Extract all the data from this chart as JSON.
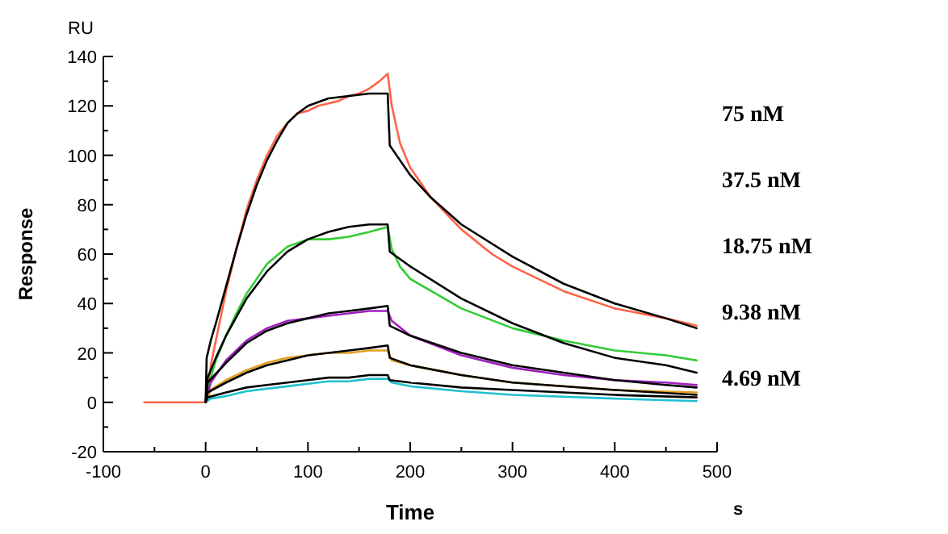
{
  "chart_data": {
    "type": "line",
    "xlabel": "Time",
    "ylabel": "Response",
    "xlim": [
      -100,
      500
    ],
    "ylim": [
      -20,
      140
    ],
    "xticks": [
      -100,
      {
        "value": -50,
        "label": null
      },
      0,
      {
        "value": 50,
        "label": null
      },
      100,
      {
        "value": 150,
        "label": null
      },
      200,
      {
        "value": 250,
        "label": null
      },
      300,
      {
        "value": 350,
        "label": null
      },
      400,
      {
        "value": 450,
        "label": null
      },
      500
    ],
    "yticks": [
      -20,
      {
        "value": -10,
        "label": null
      },
      0,
      {
        "value": 10,
        "label": null
      },
      20,
      {
        "value": 30,
        "label": null
      },
      40,
      {
        "value": 50,
        "label": null
      },
      60,
      {
        "value": 70,
        "label": null
      },
      80,
      {
        "value": 90,
        "label": null
      },
      100,
      {
        "value": 110,
        "label": null
      },
      120,
      {
        "value": 130,
        "label": null
      },
      140
    ],
    "grid": false,
    "marker": "none",
    "line_style": "solid",
    "annotations": [
      "75 nM",
      "37.5 nM",
      "18.75 nM",
      "9.38 nM",
      "4.69 nM",
      "RU",
      "s"
    ],
    "series": [
      {
        "color": "#ff6347",
        "x": [
          -60,
          0,
          5,
          10,
          20,
          30,
          40,
          50,
          60,
          70,
          80,
          90,
          100,
          110,
          120,
          130,
          140,
          150,
          160,
          170,
          178,
          182,
          190,
          200,
          220,
          250,
          280,
          300,
          350,
          400,
          450,
          480
        ],
        "values": [
          0,
          0,
          15,
          25,
          45,
          62,
          78,
          90,
          100,
          108,
          113,
          117,
          118,
          120,
          121,
          122,
          124,
          125,
          127,
          130,
          133,
          120,
          105,
          95,
          83,
          70,
          60,
          55,
          45,
          38,
          34,
          31
        ]
      },
      {
        "color": "#000000",
        "x": [
          0,
          1,
          5,
          10,
          20,
          30,
          40,
          50,
          60,
          70,
          80,
          90,
          100,
          120,
          140,
          160,
          178,
          180,
          190,
          200,
          220,
          250,
          300,
          350,
          400,
          450,
          480
        ],
        "values": [
          0,
          18,
          25,
          32,
          47,
          62,
          76,
          88,
          98,
          106,
          113,
          117,
          120,
          123,
          124,
          125,
          125,
          104,
          98,
          92,
          83,
          72,
          59,
          48,
          40,
          34,
          30
        ]
      },
      {
        "color": "#33cc33",
        "x": [
          0,
          5,
          10,
          20,
          30,
          40,
          50,
          60,
          80,
          100,
          120,
          140,
          160,
          178,
          182,
          190,
          200,
          250,
          300,
          350,
          400,
          450,
          480
        ],
        "values": [
          0,
          10,
          17,
          27,
          36,
          44,
          50,
          56,
          63,
          66,
          66,
          67,
          69,
          71,
          62,
          55,
          50,
          38,
          30,
          25,
          21,
          19,
          17
        ]
      },
      {
        "color": "#000000",
        "x": [
          0,
          2,
          10,
          20,
          40,
          60,
          80,
          100,
          120,
          140,
          160,
          178,
          180,
          200,
          250,
          300,
          350,
          400,
          450,
          480
        ],
        "values": [
          0,
          10,
          18,
          27,
          42,
          53,
          61,
          66,
          69,
          71,
          72,
          72,
          61,
          55,
          42,
          32,
          24,
          18,
          15,
          12
        ]
      },
      {
        "color": "#a020c0",
        "x": [
          0,
          5,
          20,
          40,
          60,
          80,
          100,
          120,
          140,
          160,
          178,
          182,
          200,
          250,
          300,
          350,
          400,
          450,
          480
        ],
        "values": [
          0,
          8,
          17,
          25,
          30,
          33,
          34,
          35,
          36,
          37,
          37,
          33,
          27,
          19,
          14,
          11,
          9,
          8,
          7
        ]
      },
      {
        "color": "#000000",
        "x": [
          0,
          2,
          20,
          40,
          60,
          80,
          100,
          120,
          140,
          160,
          178,
          180,
          200,
          250,
          300,
          350,
          400,
          450,
          480
        ],
        "values": [
          0,
          8,
          16,
          24,
          29,
          32,
          34,
          36,
          37,
          38,
          39,
          31,
          27,
          20,
          15,
          12,
          9,
          7,
          6
        ]
      },
      {
        "color": "#e0a020",
        "x": [
          0,
          5,
          20,
          40,
          60,
          80,
          100,
          120,
          140,
          160,
          178,
          182,
          200,
          250,
          300,
          400,
          480
        ],
        "values": [
          0,
          5,
          9,
          13,
          16,
          18,
          19,
          20,
          20,
          21,
          21,
          17,
          15,
          11,
          8,
          5,
          4
        ]
      },
      {
        "color": "#000000",
        "x": [
          0,
          2,
          20,
          40,
          60,
          80,
          100,
          120,
          140,
          160,
          178,
          180,
          200,
          250,
          300,
          400,
          480
        ],
        "values": [
          0,
          4,
          8,
          12,
          15,
          17,
          19,
          20,
          21,
          22,
          23,
          18,
          15,
          11,
          8,
          5,
          3
        ]
      },
      {
        "color": "#20c0d0",
        "x": [
          0,
          5,
          20,
          40,
          60,
          80,
          100,
          120,
          140,
          160,
          178,
          182,
          200,
          250,
          300,
          400,
          480
        ],
        "values": [
          0,
          1.5,
          2.5,
          4.5,
          5.5,
          6.5,
          7.5,
          8.5,
          8.5,
          9.5,
          9.5,
          8,
          6.5,
          4.5,
          3,
          1.5,
          0.5
        ]
      },
      {
        "color": "#000000",
        "x": [
          0,
          2,
          20,
          40,
          60,
          80,
          100,
          120,
          140,
          160,
          178,
          180,
          200,
          250,
          300,
          400,
          480
        ],
        "values": [
          0,
          2,
          4,
          6,
          7,
          8,
          9,
          10,
          10,
          11,
          11,
          9,
          8,
          6,
          5,
          3,
          2
        ]
      }
    ]
  }
}
